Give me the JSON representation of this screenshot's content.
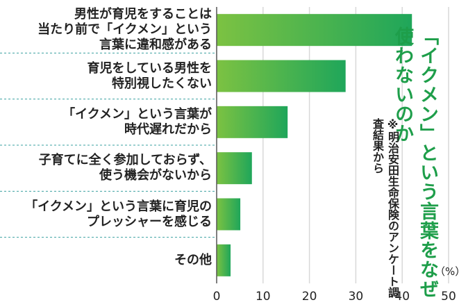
{
  "chart_data": {
    "type": "bar",
    "orientation": "horizontal",
    "title": "「イクメン」という言葉をなぜ使わないのか",
    "note": "※明治安田生命保険のアンケート調査結果から",
    "unit": "（%）",
    "categories": [
      "男性が育児をすることは当たり前で「イクメン」という言葉に違和感がある",
      "育児をしている男性を特別視したくない",
      "「イクメン」という言葉が時代遅れだから",
      "子育てに全く参加しておらず、使う機会がないから",
      "「イクメン」という言葉に育児のプレッシャーを感じる",
      "その他"
    ],
    "category_lines": [
      [
        "男性が育児をすることは",
        "当たり前で「イクメン」という",
        "言葉に違和感がある"
      ],
      [
        "育児をしている男性を",
        "特別視したくない"
      ],
      [
        "「イクメン」という言葉が",
        "時代遅れだから"
      ],
      [
        "子育てに全く参加しておらず、",
        "使う機会がないから"
      ],
      [
        "「イクメン」という言葉に育児の",
        "プレッシャーを感じる"
      ],
      [
        "その他"
      ]
    ],
    "values": [
      42.1,
      27.8,
      15.3,
      7.6,
      5.1,
      3.0
    ],
    "xlim": [
      0,
      50
    ],
    "xticks": [
      "0",
      "10",
      "20",
      "30",
      "40",
      "50"
    ],
    "grid": true,
    "colors": {
      "bar_start": "#7cc242",
      "bar_end": "#1fa65a",
      "title": "#1e9e4a",
      "grid": "#d8d8d8",
      "separator": "#3aa0a0"
    }
  }
}
